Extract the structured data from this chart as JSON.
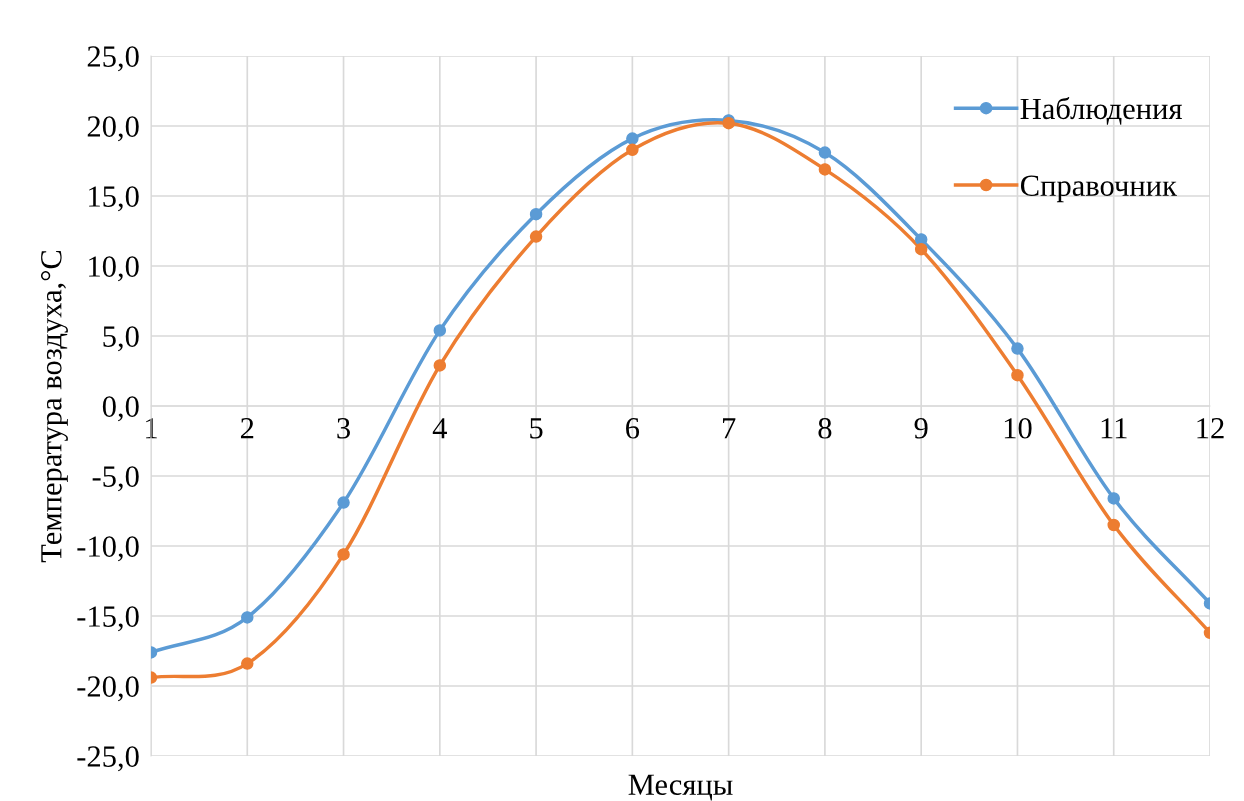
{
  "chart_data": {
    "type": "line",
    "xlabel": "Месяцы",
    "ylabel": "Температура воздуха,°С",
    "categories": [
      "1",
      "2",
      "3",
      "4",
      "5",
      "6",
      "7",
      "8",
      "9",
      "10",
      "11",
      "12"
    ],
    "series": [
      {
        "name": "Наблюдения",
        "color": "#5b9bd5",
        "values": [
          -17.6,
          -15.1,
          -6.9,
          5.4,
          13.7,
          19.1,
          20.4,
          18.1,
          11.9,
          4.1,
          -6.6,
          -14.1
        ]
      },
      {
        "name": "Справочник",
        "color": "#ed7d31",
        "values": [
          -19.4,
          -18.4,
          -10.6,
          2.9,
          12.1,
          18.3,
          20.2,
          16.9,
          11.2,
          2.2,
          -8.5,
          -16.2
        ]
      }
    ],
    "ylim": [
      -25,
      25
    ],
    "yticks": [
      {
        "value": -25,
        "label": "-25,0"
      },
      {
        "value": -20,
        "label": "-20,0"
      },
      {
        "value": -15,
        "label": "-15,0"
      },
      {
        "value": -10,
        "label": "-10,0"
      },
      {
        "value": -5,
        "label": "-5,0"
      },
      {
        "value": 0,
        "label": "0,0"
      },
      {
        "value": 5,
        "label": "5,0"
      },
      {
        "value": 10,
        "label": "10,0"
      },
      {
        "value": 15,
        "label": "15,0"
      },
      {
        "value": 20,
        "label": "20,0"
      },
      {
        "value": 25,
        "label": "25,0"
      }
    ],
    "grid": true,
    "legend": "top right",
    "marker": "circle",
    "line_style": "solid"
  }
}
